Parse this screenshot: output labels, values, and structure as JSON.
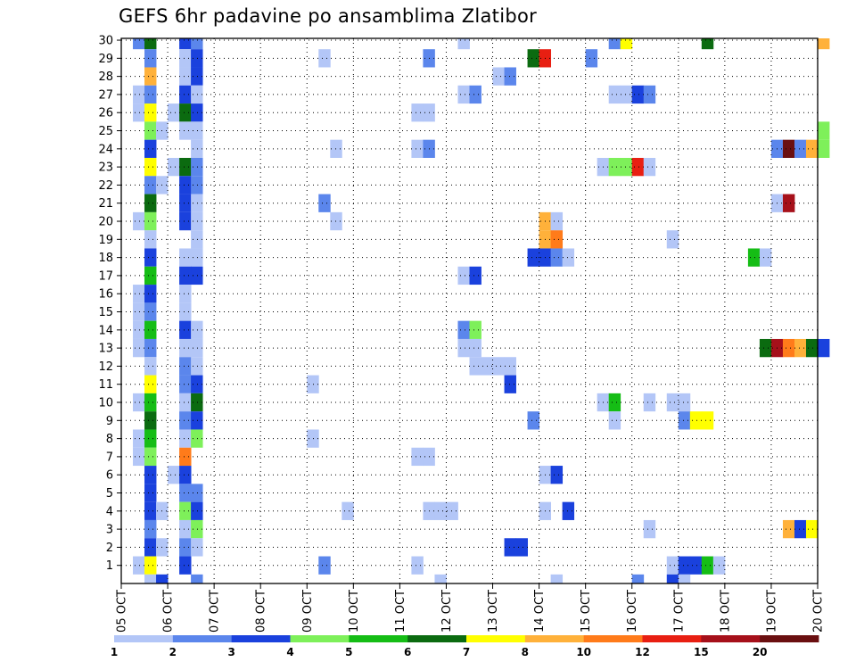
{
  "chart_data": {
    "type": "heatmap",
    "title": "GEFS 6hr padavine po ansamblima Zlatibor",
    "x_tick_labels": [
      "05 OCT",
      "06 OCT",
      "07 OCT",
      "08 OCT",
      "09 OCT",
      "10 OCT",
      "11 OCT",
      "12 OCT",
      "13 OCT",
      "14 OCT",
      "15 OCT",
      "16 OCT",
      "17 OCT",
      "18 OCT",
      "19 OCT",
      "20 OCT"
    ],
    "y_tick_labels": [
      "1",
      "2",
      "3",
      "4",
      "5",
      "6",
      "7",
      "8",
      "9",
      "10",
      "11",
      "12",
      "13",
      "14",
      "15",
      "16",
      "17",
      "18",
      "19",
      "20",
      "21",
      "22",
      "23",
      "24",
      "25",
      "26",
      "27",
      "28",
      "29",
      "30"
    ],
    "time_steps_per_day": 4,
    "members": 30,
    "grid": true,
    "legend_placement": "bottom",
    "legend": {
      "labels": [
        "1",
        "2",
        "3",
        "4",
        "5",
        "6",
        "7",
        "8",
        "10",
        "12",
        "15",
        "20"
      ],
      "colors": [
        "#b3c6f7",
        "#5b86ec",
        "#1a41dd",
        "#7ef05a",
        "#15bd15",
        "#0b6b10",
        "#ffff00",
        "#ffb13a",
        "#ff7b1a",
        "#e81f12",
        "#a6101a",
        "#6a0f10"
      ]
    },
    "cells": [
      {
        "member": 30,
        "step": 1,
        "level": 2
      },
      {
        "member": 30,
        "step": 2,
        "level": 6
      },
      {
        "member": 30,
        "step": 5,
        "level": 3
      },
      {
        "member": 30,
        "step": 6,
        "level": 2
      },
      {
        "member": 30,
        "step": 29,
        "level": 1
      },
      {
        "member": 30,
        "step": 42,
        "level": 2
      },
      {
        "member": 30,
        "step": 43,
        "level": 7
      },
      {
        "member": 30,
        "step": 50,
        "level": 6
      },
      {
        "member": 30,
        "step": 60,
        "level": 8
      },
      {
        "member": 29,
        "step": 2,
        "level": 2
      },
      {
        "member": 29,
        "step": 5,
        "level": 1
      },
      {
        "member": 29,
        "step": 6,
        "level": 3
      },
      {
        "member": 29,
        "step": 17,
        "level": 1
      },
      {
        "member": 29,
        "step": 26,
        "level": 2
      },
      {
        "member": 29,
        "step": 35,
        "level": 6
      },
      {
        "member": 29,
        "step": 36,
        "level": 10
      },
      {
        "member": 29,
        "step": 40,
        "level": 2
      },
      {
        "member": 28,
        "step": 2,
        "level": 8
      },
      {
        "member": 28,
        "step": 5,
        "level": 1
      },
      {
        "member": 28,
        "step": 6,
        "level": 3
      },
      {
        "member": 28,
        "step": 32,
        "level": 1
      },
      {
        "member": 28,
        "step": 33,
        "level": 2
      },
      {
        "member": 27,
        "step": 1,
        "level": 1
      },
      {
        "member": 27,
        "step": 2,
        "level": 2
      },
      {
        "member": 27,
        "step": 5,
        "level": 3
      },
      {
        "member": 27,
        "step": 6,
        "level": 1
      },
      {
        "member": 27,
        "step": 29,
        "level": 1
      },
      {
        "member": 27,
        "step": 30,
        "level": 2
      },
      {
        "member": 27,
        "step": 42,
        "level": 1
      },
      {
        "member": 27,
        "step": 43,
        "level": 1
      },
      {
        "member": 27,
        "step": 44,
        "level": 3
      },
      {
        "member": 27,
        "step": 45,
        "level": 2
      },
      {
        "member": 26,
        "step": 1,
        "level": 1
      },
      {
        "member": 26,
        "step": 2,
        "level": 7
      },
      {
        "member": 26,
        "step": 4,
        "level": 1
      },
      {
        "member": 26,
        "step": 5,
        "level": 6
      },
      {
        "member": 26,
        "step": 6,
        "level": 3
      },
      {
        "member": 26,
        "step": 25,
        "level": 1
      },
      {
        "member": 26,
        "step": 26,
        "level": 1
      },
      {
        "member": 25,
        "step": 2,
        "level": 4
      },
      {
        "member": 25,
        "step": 3,
        "level": 1
      },
      {
        "member": 25,
        "step": 5,
        "level": 1
      },
      {
        "member": 25,
        "step": 6,
        "level": 1
      },
      {
        "member": 25,
        "step": 60,
        "level": 4
      },
      {
        "member": 24,
        "step": 2,
        "level": 3
      },
      {
        "member": 24,
        "step": 6,
        "level": 1
      },
      {
        "member": 24,
        "step": 18,
        "level": 1
      },
      {
        "member": 24,
        "step": 25,
        "level": 1
      },
      {
        "member": 24,
        "step": 26,
        "level": 2
      },
      {
        "member": 24,
        "step": 56,
        "level": 2
      },
      {
        "member": 24,
        "step": 57,
        "level": 12
      },
      {
        "member": 24,
        "step": 58,
        "level": 2
      },
      {
        "member": 24,
        "step": 59,
        "level": 8
      },
      {
        "member": 24,
        "step": 60,
        "level": 4
      },
      {
        "member": 23,
        "step": 2,
        "level": 7
      },
      {
        "member": 23,
        "step": 4,
        "level": 1
      },
      {
        "member": 23,
        "step": 5,
        "level": 6
      },
      {
        "member": 23,
        "step": 6,
        "level": 2
      },
      {
        "member": 23,
        "step": 41,
        "level": 1
      },
      {
        "member": 23,
        "step": 42,
        "level": 4
      },
      {
        "member": 23,
        "step": 43,
        "level": 4
      },
      {
        "member": 23,
        "step": 44,
        "level": 10
      },
      {
        "member": 23,
        "step": 45,
        "level": 1
      },
      {
        "member": 22,
        "step": 2,
        "level": 2
      },
      {
        "member": 22,
        "step": 3,
        "level": 1
      },
      {
        "member": 22,
        "step": 5,
        "level": 3
      },
      {
        "member": 22,
        "step": 6,
        "level": 2
      },
      {
        "member": 21,
        "step": 2,
        "level": 6
      },
      {
        "member": 21,
        "step": 5,
        "level": 3
      },
      {
        "member": 21,
        "step": 6,
        "level": 1
      },
      {
        "member": 21,
        "step": 17,
        "level": 2
      },
      {
        "member": 21,
        "step": 56,
        "level": 1
      },
      {
        "member": 21,
        "step": 57,
        "level": 11
      },
      {
        "member": 20,
        "step": 1,
        "level": 1
      },
      {
        "member": 20,
        "step": 2,
        "level": 4
      },
      {
        "member": 20,
        "step": 5,
        "level": 3
      },
      {
        "member": 20,
        "step": 6,
        "level": 1
      },
      {
        "member": 20,
        "step": 18,
        "level": 1
      },
      {
        "member": 20,
        "step": 36,
        "level": 8
      },
      {
        "member": 20,
        "step": 37,
        "level": 1
      },
      {
        "member": 19,
        "step": 2,
        "level": 1
      },
      {
        "member": 19,
        "step": 6,
        "level": 1
      },
      {
        "member": 19,
        "step": 36,
        "level": 8
      },
      {
        "member": 19,
        "step": 37,
        "level": 9
      },
      {
        "member": 19,
        "step": 47,
        "level": 1
      },
      {
        "member": 18,
        "step": 2,
        "level": 3
      },
      {
        "member": 18,
        "step": 5,
        "level": 1
      },
      {
        "member": 18,
        "step": 6,
        "level": 1
      },
      {
        "member": 18,
        "step": 35,
        "level": 3
      },
      {
        "member": 18,
        "step": 36,
        "level": 3
      },
      {
        "member": 18,
        "step": 37,
        "level": 2
      },
      {
        "member": 18,
        "step": 38,
        "level": 1
      },
      {
        "member": 18,
        "step": 54,
        "level": 5
      },
      {
        "member": 18,
        "step": 55,
        "level": 1
      },
      {
        "member": 17,
        "step": 2,
        "level": 5
      },
      {
        "member": 17,
        "step": 5,
        "level": 3
      },
      {
        "member": 17,
        "step": 6,
        "level": 3
      },
      {
        "member": 17,
        "step": 29,
        "level": 1
      },
      {
        "member": 17,
        "step": 30,
        "level": 3
      },
      {
        "member": 16,
        "step": 1,
        "level": 1
      },
      {
        "member": 16,
        "step": 2,
        "level": 3
      },
      {
        "member": 16,
        "step": 5,
        "level": 1
      },
      {
        "member": 15,
        "step": 1,
        "level": 1
      },
      {
        "member": 15,
        "step": 2,
        "level": 2
      },
      {
        "member": 15,
        "step": 5,
        "level": 1
      },
      {
        "member": 14,
        "step": 1,
        "level": 1
      },
      {
        "member": 14,
        "step": 2,
        "level": 5
      },
      {
        "member": 14,
        "step": 5,
        "level": 3
      },
      {
        "member": 14,
        "step": 6,
        "level": 1
      },
      {
        "member": 14,
        "step": 29,
        "level": 2
      },
      {
        "member": 14,
        "step": 30,
        "level": 4
      },
      {
        "member": 13,
        "step": 1,
        "level": 1
      },
      {
        "member": 13,
        "step": 2,
        "level": 2
      },
      {
        "member": 13,
        "step": 5,
        "level": 1
      },
      {
        "member": 13,
        "step": 6,
        "level": 1
      },
      {
        "member": 13,
        "step": 29,
        "level": 1
      },
      {
        "member": 13,
        "step": 30,
        "level": 1
      },
      {
        "member": 13,
        "step": 55,
        "level": 6
      },
      {
        "member": 13,
        "step": 56,
        "level": 11
      },
      {
        "member": 13,
        "step": 57,
        "level": 9
      },
      {
        "member": 13,
        "step": 58,
        "level": 8
      },
      {
        "member": 13,
        "step": 59,
        "level": 6
      },
      {
        "member": 13,
        "step": 60,
        "level": 3
      },
      {
        "member": 12,
        "step": 2,
        "level": 1
      },
      {
        "member": 12,
        "step": 5,
        "level": 2
      },
      {
        "member": 12,
        "step": 6,
        "level": 1
      },
      {
        "member": 12,
        "step": 30,
        "level": 1
      },
      {
        "member": 12,
        "step": 31,
        "level": 1
      },
      {
        "member": 12,
        "step": 32,
        "level": 1
      },
      {
        "member": 12,
        "step": 33,
        "level": 1
      },
      {
        "member": 11,
        "step": 2,
        "level": 7
      },
      {
        "member": 11,
        "step": 5,
        "level": 2
      },
      {
        "member": 11,
        "step": 6,
        "level": 3
      },
      {
        "member": 11,
        "step": 16,
        "level": 1
      },
      {
        "member": 11,
        "step": 33,
        "level": 3
      },
      {
        "member": 10,
        "step": 1,
        "level": 1
      },
      {
        "member": 10,
        "step": 2,
        "level": 5
      },
      {
        "member": 10,
        "step": 5,
        "level": 1
      },
      {
        "member": 10,
        "step": 6,
        "level": 6
      },
      {
        "member": 10,
        "step": 41,
        "level": 1
      },
      {
        "member": 10,
        "step": 42,
        "level": 5
      },
      {
        "member": 10,
        "step": 45,
        "level": 1
      },
      {
        "member": 10,
        "step": 47,
        "level": 1
      },
      {
        "member": 10,
        "step": 48,
        "level": 1
      },
      {
        "member": 9,
        "step": 2,
        "level": 6
      },
      {
        "member": 9,
        "step": 5,
        "level": 2
      },
      {
        "member": 9,
        "step": 6,
        "level": 3
      },
      {
        "member": 9,
        "step": 35,
        "level": 2
      },
      {
        "member": 9,
        "step": 42,
        "level": 1
      },
      {
        "member": 9,
        "step": 48,
        "level": 2
      },
      {
        "member": 9,
        "step": 49,
        "level": 7
      },
      {
        "member": 9,
        "step": 50,
        "level": 7
      },
      {
        "member": 8,
        "step": 1,
        "level": 1
      },
      {
        "member": 8,
        "step": 2,
        "level": 5
      },
      {
        "member": 8,
        "step": 5,
        "level": 1
      },
      {
        "member": 8,
        "step": 6,
        "level": 4
      },
      {
        "member": 8,
        "step": 16,
        "level": 1
      },
      {
        "member": 7,
        "step": 1,
        "level": 1
      },
      {
        "member": 7,
        "step": 2,
        "level": 4
      },
      {
        "member": 7,
        "step": 5,
        "level": 9
      },
      {
        "member": 7,
        "step": 25,
        "level": 1
      },
      {
        "member": 7,
        "step": 26,
        "level": 1
      },
      {
        "member": 6,
        "step": 2,
        "level": 3
      },
      {
        "member": 6,
        "step": 4,
        "level": 1
      },
      {
        "member": 6,
        "step": 5,
        "level": 3
      },
      {
        "member": 6,
        "step": 36,
        "level": 1
      },
      {
        "member": 6,
        "step": 37,
        "level": 3
      },
      {
        "member": 5,
        "step": 2,
        "level": 3
      },
      {
        "member": 5,
        "step": 5,
        "level": 2
      },
      {
        "member": 5,
        "step": 6,
        "level": 2
      },
      {
        "member": 4,
        "step": 2,
        "level": 3
      },
      {
        "member": 4,
        "step": 3,
        "level": 1
      },
      {
        "member": 4,
        "step": 5,
        "level": 4
      },
      {
        "member": 4,
        "step": 6,
        "level": 3
      },
      {
        "member": 4,
        "step": 19,
        "level": 1
      },
      {
        "member": 4,
        "step": 26,
        "level": 1
      },
      {
        "member": 4,
        "step": 27,
        "level": 1
      },
      {
        "member": 4,
        "step": 28,
        "level": 1
      },
      {
        "member": 4,
        "step": 36,
        "level": 1
      },
      {
        "member": 4,
        "step": 38,
        "level": 3
      },
      {
        "member": 3,
        "step": 2,
        "level": 2
      },
      {
        "member": 3,
        "step": 5,
        "level": 1
      },
      {
        "member": 3,
        "step": 6,
        "level": 4
      },
      {
        "member": 3,
        "step": 45,
        "level": 1
      },
      {
        "member": 3,
        "step": 57,
        "level": 8
      },
      {
        "member": 3,
        "step": 58,
        "level": 3
      },
      {
        "member": 3,
        "step": 59,
        "level": 7
      },
      {
        "member": 2,
        "step": 2,
        "level": 3
      },
      {
        "member": 2,
        "step": 3,
        "level": 1
      },
      {
        "member": 2,
        "step": 5,
        "level": 2
      },
      {
        "member": 2,
        "step": 6,
        "level": 1
      },
      {
        "member": 2,
        "step": 33,
        "level": 3
      },
      {
        "member": 2,
        "step": 34,
        "level": 3
      },
      {
        "member": 1,
        "step": 1,
        "level": 1
      },
      {
        "member": 1,
        "step": 2,
        "level": 7
      },
      {
        "member": 1,
        "step": 5,
        "level": 3
      },
      {
        "member": 1,
        "step": 17,
        "level": 2
      },
      {
        "member": 1,
        "step": 25,
        "level": 1
      },
      {
        "member": 1,
        "step": 47,
        "level": 1
      },
      {
        "member": 1,
        "step": 48,
        "level": 3
      },
      {
        "member": 1,
        "step": 49,
        "level": 3
      },
      {
        "member": 1,
        "step": 50,
        "level": 5
      },
      {
        "member": 1,
        "step": 51,
        "level": 1
      },
      {
        "member": 0,
        "step": 2,
        "level": 1
      },
      {
        "member": 0,
        "step": 3,
        "level": 3
      },
      {
        "member": 0,
        "step": 6,
        "level": 2
      },
      {
        "member": 0,
        "step": 27,
        "level": 1
      },
      {
        "member": 0,
        "step": 37,
        "level": 1
      },
      {
        "member": 0,
        "step": 44,
        "level": 2
      },
      {
        "member": 0,
        "step": 47,
        "level": 3
      },
      {
        "member": 0,
        "step": 48,
        "level": 1
      }
    ]
  }
}
